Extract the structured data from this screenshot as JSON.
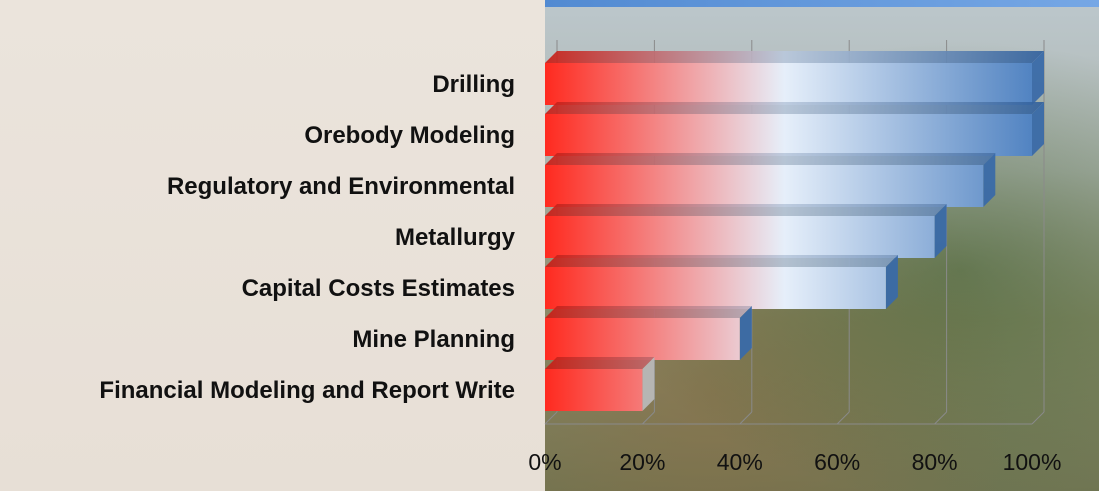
{
  "chart_data": {
    "type": "bar",
    "orientation": "horizontal",
    "categories": [
      "Drilling",
      "Orebody Modeling",
      "Regulatory and Environmental",
      "Metallurgy",
      "Capital Costs Estimates",
      "Mine Planning",
      "Financial Modeling and Report Write"
    ],
    "values": [
      100,
      100,
      90,
      80,
      70,
      40,
      20
    ],
    "xlim": [
      0,
      100
    ],
    "xticks": [
      "0%",
      "20%",
      "40%",
      "60%",
      "80%",
      "100%"
    ],
    "title": "",
    "xlabel": "",
    "ylabel": "",
    "grid": true,
    "colors": {
      "bar_start": "#ff2a1f",
      "bar_mid": "#e6effa",
      "bar_end": "#4a7ebf"
    }
  }
}
